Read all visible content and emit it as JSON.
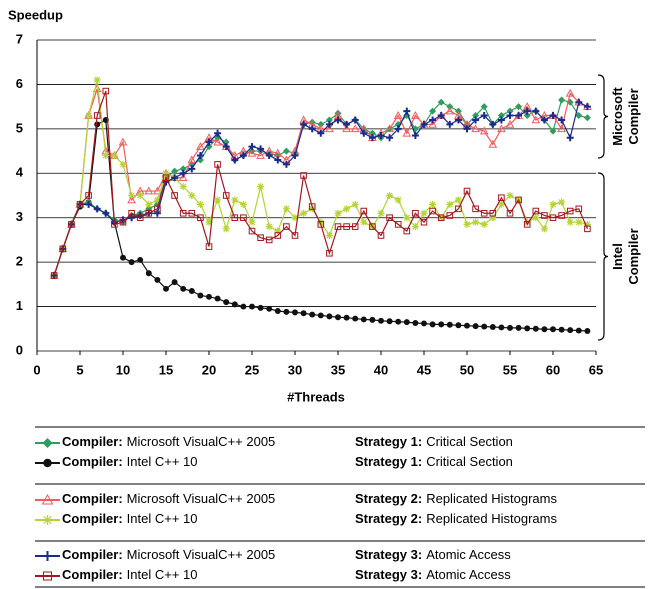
{
  "chart_data": {
    "type": "line",
    "ylabel": "Speedup",
    "xlabel": "#Threads",
    "xlim": [
      0,
      65
    ],
    "xticks": [
      0,
      5,
      10,
      15,
      20,
      25,
      30,
      35,
      40,
      45,
      50,
      55,
      60,
      65
    ],
    "ylim": [
      0,
      7
    ],
    "yticks": [
      0,
      1,
      2,
      3,
      4,
      5,
      6,
      7
    ],
    "grid": true,
    "legend_compiler_label": "Compiler:",
    "annotations": [
      [
        "Microsoft",
        "Compiler"
      ],
      [
        "Intel",
        "Compiler"
      ]
    ],
    "x": [
      2,
      3,
      4,
      5,
      6,
      7,
      8,
      9,
      10,
      11,
      12,
      13,
      14,
      15,
      16,
      17,
      18,
      19,
      20,
      21,
      22,
      23,
      24,
      25,
      26,
      27,
      28,
      29,
      30,
      31,
      32,
      33,
      34,
      35,
      36,
      37,
      38,
      39,
      40,
      41,
      42,
      43,
      44,
      45,
      46,
      47,
      48,
      49,
      50,
      51,
      52,
      53,
      54,
      55,
      56,
      57,
      58,
      59,
      60,
      61,
      62,
      63,
      64
    ],
    "series": [
      {
        "compiler": "Microsoft VisualC++ 2005",
        "strategy_label": "Strategy 1:",
        "strategy": "Critical Section",
        "color": "#2e9e5e",
        "marker": "diamond",
        "values": [
          1.7,
          2.3,
          2.85,
          3.3,
          3.35,
          3.2,
          3.1,
          2.95,
          2.9,
          3.05,
          3.1,
          3.2,
          3.3,
          3.9,
          4.05,
          4.1,
          4.2,
          4.3,
          4.6,
          4.8,
          4.7,
          4.3,
          4.4,
          4.5,
          4.5,
          4.45,
          4.4,
          4.5,
          4.45,
          5.1,
          5.15,
          5.1,
          5.2,
          5.35,
          5.1,
          5.2,
          5.0,
          4.9,
          4.8,
          5.0,
          5.1,
          5.3,
          5.0,
          5.1,
          5.4,
          5.6,
          5.5,
          5.4,
          5.1,
          5.3,
          5.5,
          5.1,
          5.3,
          5.4,
          5.5,
          5.3,
          5.4,
          5.2,
          4.95,
          5.65,
          5.6,
          5.3,
          5.25
        ]
      },
      {
        "compiler": "Intel C++ 10",
        "strategy_label": "Strategy 1:",
        "strategy": "Critical Section",
        "color": "#111111",
        "marker": "circle",
        "values": [
          1.7,
          2.3,
          2.85,
          3.25,
          3.35,
          5.1,
          5.2,
          2.9,
          2.1,
          2.0,
          2.05,
          1.75,
          1.6,
          1.4,
          1.55,
          1.4,
          1.35,
          1.25,
          1.22,
          1.18,
          1.1,
          1.05,
          1.0,
          1.0,
          0.97,
          0.95,
          0.9,
          0.88,
          0.87,
          0.85,
          0.82,
          0.8,
          0.78,
          0.76,
          0.75,
          0.73,
          0.71,
          0.7,
          0.68,
          0.67,
          0.66,
          0.65,
          0.63,
          0.62,
          0.6,
          0.6,
          0.59,
          0.58,
          0.57,
          0.56,
          0.55,
          0.54,
          0.53,
          0.52,
          0.52,
          0.51,
          0.5,
          0.49,
          0.49,
          0.48,
          0.47,
          0.46,
          0.45
        ]
      },
      {
        "compiler": "Microsoft VisualC++ 2005",
        "strategy_label": "Strategy 2:",
        "strategy": "Replicated Histograms",
        "color": "#f05a5a",
        "marker": "triangle",
        "values": [
          1.7,
          2.3,
          2.85,
          3.3,
          5.3,
          5.9,
          4.5,
          4.4,
          4.7,
          3.4,
          3.6,
          3.6,
          3.6,
          4.0,
          3.9,
          3.9,
          4.3,
          4.6,
          4.8,
          4.7,
          4.6,
          4.4,
          4.5,
          4.45,
          4.4,
          4.5,
          4.45,
          4.3,
          4.5,
          5.2,
          5.1,
          5.0,
          5.0,
          5.3,
          5.0,
          5.0,
          5.0,
          4.8,
          4.9,
          5.0,
          5.3,
          4.9,
          5.3,
          5.1,
          5.1,
          5.3,
          5.4,
          5.3,
          5.1,
          5.0,
          4.95,
          4.65,
          5.0,
          5.1,
          5.3,
          5.5,
          5.2,
          5.3,
          5.3,
          5.0,
          5.8,
          5.6,
          5.5
        ]
      },
      {
        "compiler": "Intel C++ 10",
        "strategy_label": "Strategy 2:",
        "strategy": "Replicated Histograms",
        "color": "#b5d334",
        "marker": "star",
        "values": [
          1.7,
          2.3,
          2.85,
          3.3,
          5.3,
          6.1,
          4.4,
          4.4,
          4.2,
          3.5,
          3.5,
          3.3,
          3.4,
          4.0,
          3.9,
          3.7,
          3.5,
          3.3,
          2.9,
          3.4,
          2.75,
          3.4,
          3.3,
          2.9,
          3.7,
          2.8,
          2.7,
          3.2,
          3.0,
          3.1,
          3.2,
          2.9,
          2.6,
          3.1,
          3.2,
          3.3,
          2.9,
          2.8,
          3.1,
          3.5,
          3.4,
          3.0,
          2.8,
          3.1,
          3.3,
          3.0,
          3.3,
          3.4,
          2.85,
          2.9,
          2.85,
          3.0,
          3.3,
          3.5,
          3.4,
          2.9,
          3.0,
          2.75,
          3.3,
          3.35,
          2.9,
          2.9,
          2.85
        ]
      },
      {
        "compiler": "Microsoft VisualC++ 2005",
        "strategy_label": "Strategy 3:",
        "strategy": "Atomic Access",
        "color": "#1c2a8c",
        "marker": "plus",
        "values": [
          1.7,
          2.3,
          2.85,
          3.3,
          3.3,
          3.2,
          3.1,
          2.9,
          2.95,
          3.0,
          3.05,
          3.1,
          3.1,
          3.8,
          3.9,
          4.0,
          4.1,
          4.4,
          4.7,
          4.9,
          4.6,
          4.3,
          4.4,
          4.6,
          4.55,
          4.4,
          4.3,
          4.2,
          4.4,
          5.1,
          5.0,
          4.9,
          5.1,
          5.2,
          5.1,
          5.2,
          4.9,
          4.8,
          4.85,
          4.8,
          5.0,
          5.4,
          4.85,
          5.1,
          5.2,
          5.3,
          5.1,
          5.2,
          5.0,
          5.2,
          5.3,
          5.1,
          5.2,
          5.3,
          5.3,
          5.4,
          5.4,
          5.2,
          5.3,
          5.2,
          4.8,
          5.6,
          5.5
        ]
      },
      {
        "compiler": "Intel C++ 10",
        "strategy_label": "Strategy 3:",
        "strategy": "Atomic Access",
        "color": "#a3181c",
        "marker": "square",
        "values": [
          1.7,
          2.3,
          2.85,
          3.3,
          3.5,
          5.3,
          5.85,
          2.85,
          2.9,
          3.1,
          3.0,
          3.1,
          3.2,
          3.9,
          3.5,
          3.1,
          3.1,
          3.0,
          2.35,
          4.2,
          3.5,
          3.0,
          3.0,
          2.7,
          2.55,
          2.5,
          2.6,
          2.8,
          2.6,
          3.95,
          3.25,
          2.85,
          2.2,
          2.8,
          2.8,
          2.8,
          3.15,
          2.8,
          2.6,
          3.0,
          2.85,
          2.7,
          3.1,
          2.9,
          3.15,
          3.0,
          3.05,
          3.2,
          3.6,
          3.2,
          3.1,
          3.1,
          3.45,
          3.1,
          3.4,
          2.85,
          3.15,
          3.05,
          3.0,
          3.05,
          3.15,
          3.2,
          2.75
        ]
      }
    ]
  }
}
